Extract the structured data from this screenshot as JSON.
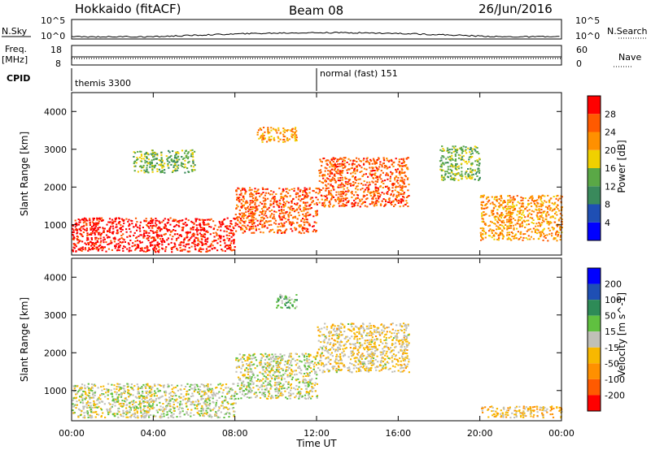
{
  "header": {
    "station": "Hokkaido (fitACF)",
    "beam": "Beam 08",
    "date": "26/Jun/2016"
  },
  "top_panels": {
    "nsky_label": "N.Sky",
    "nsky_ticks": [
      "10^5",
      "10^0"
    ],
    "nsearch_label": "N.Search",
    "nsearch_ticks": [
      "10^5",
      "10^0"
    ],
    "freq_label": "Freq.",
    "freq_unit": "[MHz]",
    "freq_ticks": [
      "18",
      "8"
    ],
    "nave_label": "Nave",
    "nave_ticks": [
      "60",
      "0"
    ],
    "cpid_label": "CPID",
    "cpid_segments": [
      {
        "label": "themis 3300",
        "start_hour": 0
      },
      {
        "label": "normal (fast) 151",
        "start_hour": 12
      }
    ]
  },
  "x_axis": {
    "label": "Time UT",
    "ticks": [
      "00:00",
      "04:00",
      "08:00",
      "12:00",
      "16:00",
      "20:00",
      "00:00"
    ],
    "tick_hours": [
      0,
      4,
      8,
      12,
      16,
      20,
      24
    ]
  },
  "colors": {
    "power_scale": [
      "#0000ff",
      "#1f4fb4",
      "#3a8a5c",
      "#5aa846",
      "#f0d000",
      "#ff9000",
      "#ff5a00",
      "#ff0000"
    ],
    "velocity_scale": [
      "#ff0000",
      "#ff5a00",
      "#ff9000",
      "#f8b800",
      "#c0c0b8",
      "#60c040",
      "#2e8b57",
      "#1f4fb4",
      "#0000ff"
    ],
    "ground_scatter": "#c0c0b8"
  },
  "chart_data": [
    {
      "type": "heatmap",
      "title": "Power",
      "ylabel": "Slant Range [km]",
      "yticks": [
        "1000",
        "2000",
        "3000",
        "4000"
      ],
      "ylim": [
        200,
        4500
      ],
      "xlim": [
        0,
        24
      ],
      "colorbar": {
        "label": "Power [dB]",
        "ticks": [
          "4",
          "8",
          "12",
          "16",
          "20",
          "24",
          "28"
        ],
        "range": [
          0,
          32
        ]
      },
      "features": [
        {
          "t": [
            0,
            8
          ],
          "range_km": [
            300,
            1200
          ],
          "power_db": 30
        },
        {
          "t": [
            8,
            12
          ],
          "range_km": [
            800,
            2000
          ],
          "power_db": 26
        },
        {
          "t": [
            12,
            16.5
          ],
          "range_km": [
            1500,
            2800
          ],
          "power_db": 26
        },
        {
          "t": [
            9,
            11
          ],
          "range_km": [
            3200,
            3600
          ],
          "power_db": 22
        },
        {
          "t": [
            3,
            6
          ],
          "range_km": [
            2400,
            3000
          ],
          "power_db": 14
        },
        {
          "t": [
            20,
            24
          ],
          "range_km": [
            600,
            1800
          ],
          "power_db": 22
        },
        {
          "t": [
            18,
            20
          ],
          "range_km": [
            2200,
            3100
          ],
          "power_db": 14
        }
      ]
    },
    {
      "type": "heatmap",
      "title": "Velocity",
      "ylabel": "Slant Range [km]",
      "yticks": [
        "1000",
        "2000",
        "3000",
        "4000"
      ],
      "ylim": [
        200,
        4500
      ],
      "xlim": [
        0,
        24
      ],
      "colorbar": {
        "label": "Velocity [m s^-1]",
        "ticks": [
          "200",
          "100",
          "50",
          "15",
          "-15",
          "-50",
          "-100",
          "-200"
        ],
        "range": [
          -250,
          250
        ]
      },
      "features": [
        {
          "t": [
            0,
            8
          ],
          "range_km": [
            300,
            1200
          ],
          "velocity_ms": 0
        },
        {
          "t": [
            8,
            12
          ],
          "range_km": [
            800,
            2000
          ],
          "velocity_ms": 0
        },
        {
          "t": [
            12,
            16.5
          ],
          "range_km": [
            1500,
            2800
          ],
          "velocity_ms": -30
        },
        {
          "t": [
            10,
            11
          ],
          "range_km": [
            3200,
            3600
          ],
          "velocity_ms": 60
        },
        {
          "t": [
            20,
            24
          ],
          "range_km": [
            300,
            600
          ],
          "velocity_ms": -60
        }
      ]
    }
  ]
}
